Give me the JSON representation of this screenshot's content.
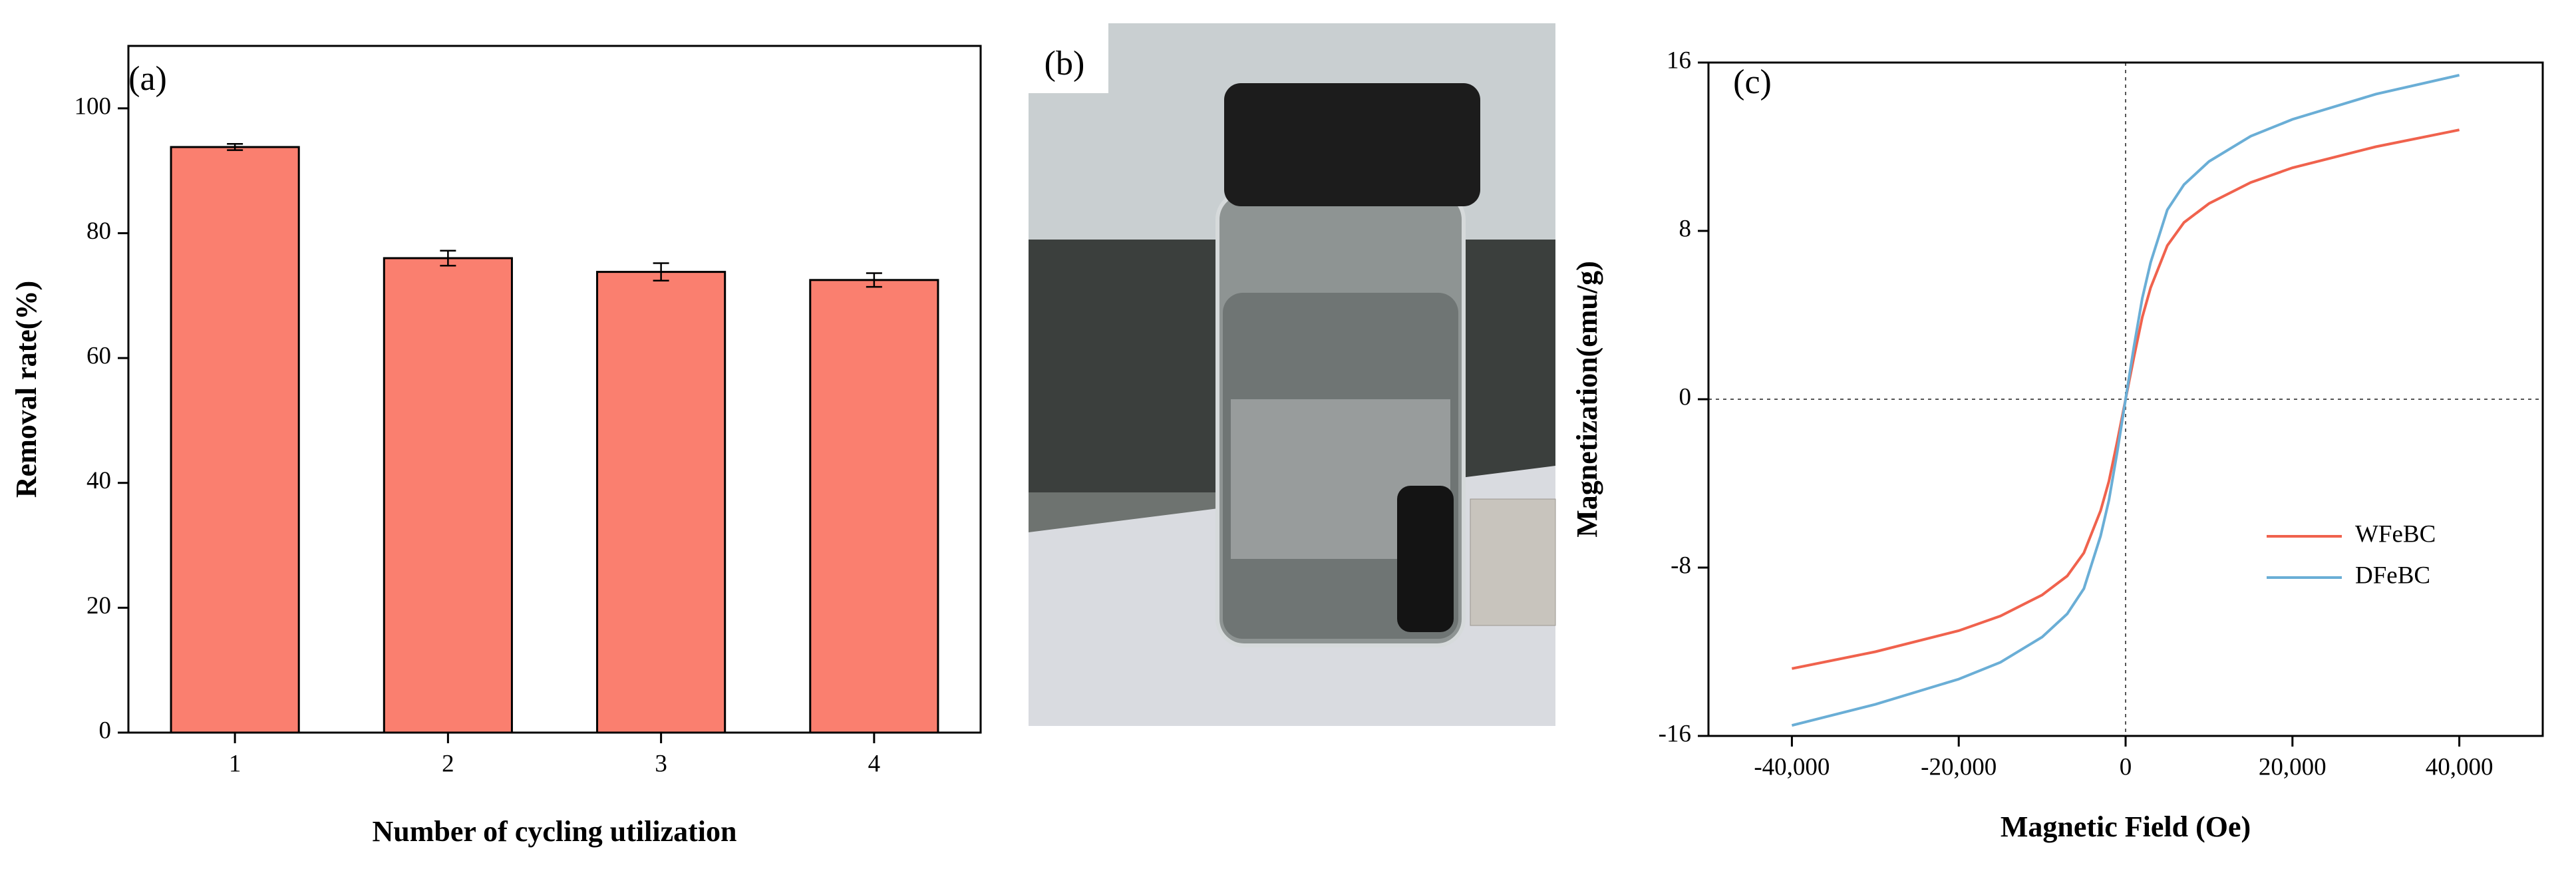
{
  "chart_data": [
    {
      "type": "bar",
      "annotation": "(a)",
      "xlabel": "Number of cycling utilization",
      "ylabel": "Removal rate(%)",
      "categories": [
        "1",
        "2",
        "3",
        "4"
      ],
      "values": [
        93.8,
        76,
        73.8,
        72.5
      ],
      "errors": [
        0.5,
        1.2,
        1.4,
        1.1
      ],
      "color": "#fa7f6f",
      "ylim": [
        0,
        110
      ],
      "yticks": [
        0,
        20,
        40,
        60,
        80,
        100
      ]
    },
    {
      "type": "line",
      "annotation": "(c)",
      "xlabel": "Magnetic Field (Oe)",
      "ylabel": "Magnetization(emu/g)",
      "x": [
        -40000,
        -30000,
        -20000,
        -15000,
        -10000,
        -7000,
        -5000,
        -3000,
        -2000,
        -1000,
        0,
        1000,
        2000,
        3000,
        5000,
        7000,
        10000,
        15000,
        20000,
        30000,
        40000
      ],
      "series": [
        {
          "name": "WFeBC",
          "color": "#f0624d",
          "values": [
            -12.8,
            -12,
            -11,
            -10.3,
            -9.3,
            -8.4,
            -7.3,
            -5.3,
            -3.9,
            -2,
            0,
            2,
            3.9,
            5.3,
            7.3,
            8.4,
            9.3,
            10.3,
            11,
            12,
            12.8
          ]
        },
        {
          "name": "DFeBC",
          "color": "#6aaed6",
          "values": [
            -15.5,
            -14.5,
            -13.3,
            -12.5,
            -11.3,
            -10.2,
            -9,
            -6.5,
            -4.8,
            -2.5,
            0,
            2.5,
            4.8,
            6.5,
            9,
            10.2,
            11.3,
            12.5,
            13.3,
            14.5,
            15.4
          ]
        }
      ],
      "xlim": [
        -50000,
        50000
      ],
      "ylim": [
        -16,
        16
      ],
      "xticks": [
        {
          "value": -40000,
          "label": "-40,000"
        },
        {
          "value": -20000,
          "label": "-20,000"
        },
        0,
        {
          "value": 20000,
          "label": "20,000"
        },
        {
          "value": 40000,
          "label": "40,000"
        }
      ],
      "yticks": [
        -16,
        -8,
        0,
        8,
        16
      ],
      "zero_lines": true,
      "legend": "lower right"
    }
  ],
  "photo": {
    "label": "(b)"
  }
}
